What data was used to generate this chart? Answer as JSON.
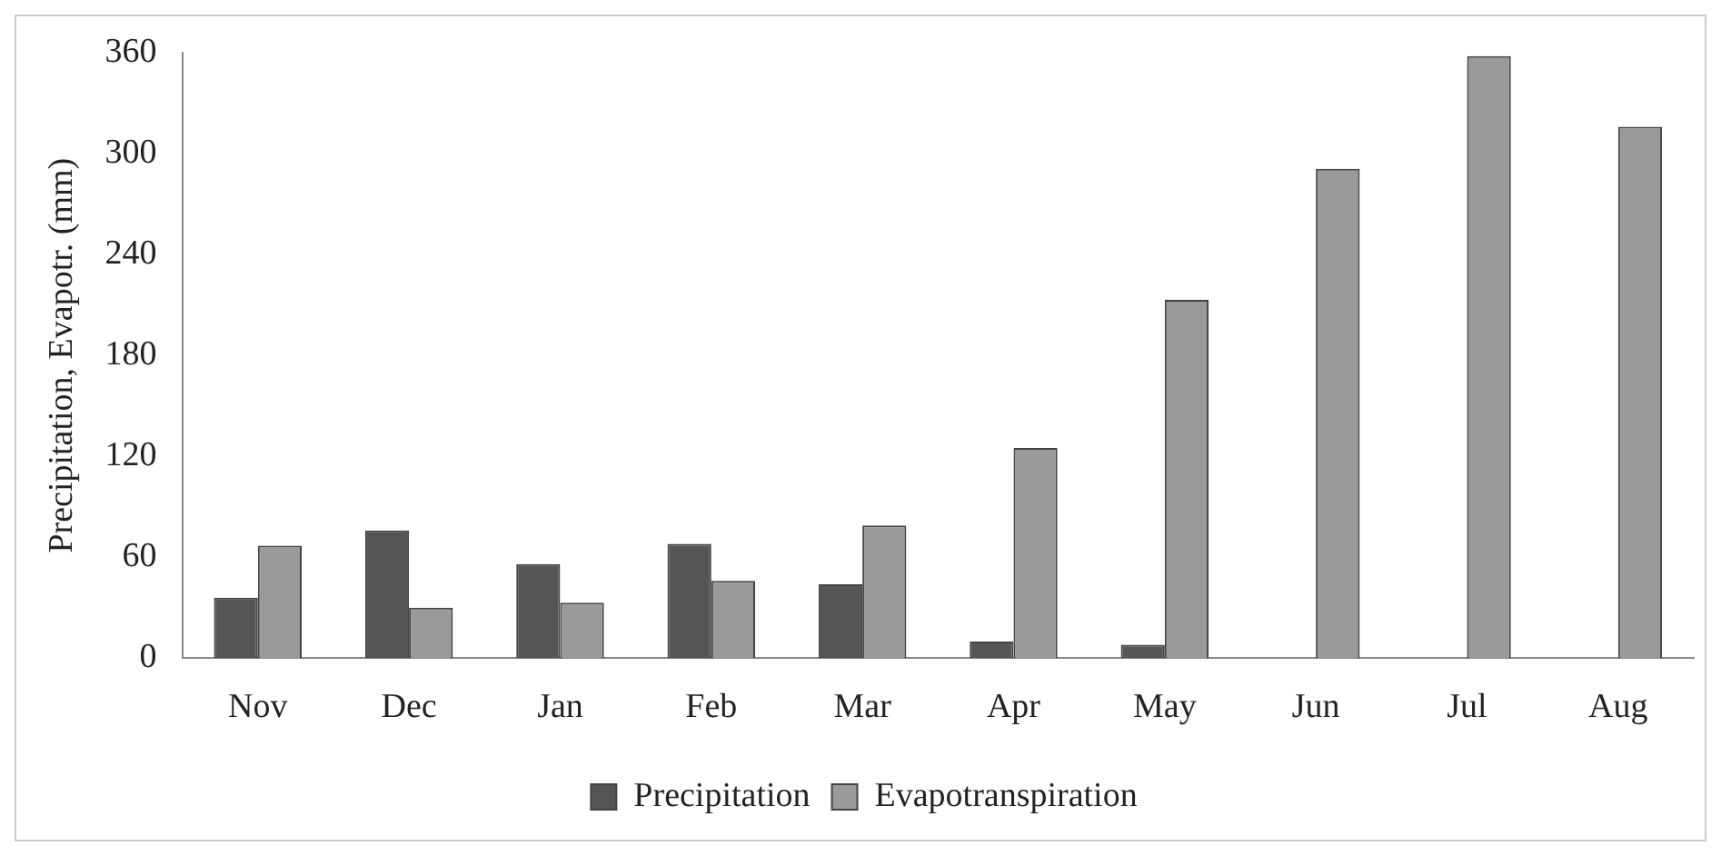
{
  "chart_data": {
    "type": "bar",
    "ylabel": "Precipitation, Evapotr. (mm)",
    "categories": [
      "Nov",
      "Dec",
      "Jan",
      "Feb",
      "Mar",
      "Apr",
      "May",
      "Jun",
      "Jul",
      "Aug"
    ],
    "series": [
      {
        "name": "Precipitation",
        "color": "#555555",
        "values": [
          36,
          76,
          56,
          68,
          44,
          10,
          8,
          0,
          0,
          0
        ]
      },
      {
        "name": "Evapotranspiration",
        "color": "#9a9a9a",
        "values": [
          67,
          30,
          33,
          46,
          79,
          125,
          213,
          291,
          358,
          316
        ]
      }
    ],
    "ylim": [
      0,
      360
    ],
    "yticks": [
      0,
      60,
      120,
      180,
      240,
      300,
      360
    ],
    "grid": false,
    "legend": "bottom"
  }
}
